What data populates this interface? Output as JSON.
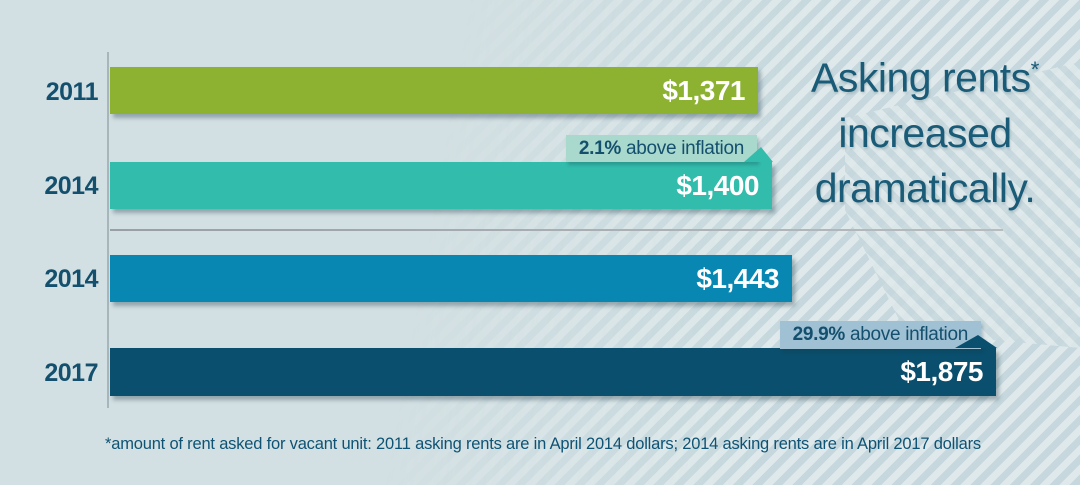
{
  "colors": {
    "background": "#d3e0e3",
    "stripe_light": "#dfe9eb",
    "stripe_dark": "#c6d8dd",
    "title_text": "#1a5b78",
    "year_label_text": "#14506e",
    "value_label_text": "#ffffff",
    "annotation_text": "#14506e",
    "axis_line": "#a7b6bb",
    "annotation_bg_teal": "#a9d8cd",
    "annotation_bg_blue": "#a0c0d4"
  },
  "title": {
    "lines": [
      "Asking rents",
      "increased",
      "dramatically."
    ],
    "asterisk": "*"
  },
  "chart_data": {
    "type": "bar",
    "orientation": "horizontal",
    "categories": [
      "2011",
      "2014",
      "2014",
      "2017"
    ],
    "values": [
      1371,
      1400,
      1443,
      1875
    ],
    "value_labels": [
      "$1,371",
      "$1,400",
      "$1,443",
      "$1,875"
    ],
    "bar_colors": [
      "#8db232",
      "#32bcab",
      "#0787b2",
      "#0a4f6d"
    ],
    "xlim": [
      0,
      1875
    ],
    "grid": false,
    "legend": "none",
    "separator_between_rows": [
      1,
      2
    ],
    "annotations": [
      {
        "bar_index": 1,
        "bold": "2.1%",
        "text": " above inflation",
        "bg": "#a9d8cd",
        "pointer_color": "#32bcab"
      },
      {
        "bar_index": 3,
        "bold": "29.9%",
        "text": " above inflation",
        "bg": "#a0c0d4",
        "pointer_color": "#0a4f6d"
      }
    ]
  },
  "footnote": "*amount of rent asked for vacant unit: 2011 asking rents are in April 2014 dollars; 2014 asking rents are in April 2017 dollars"
}
